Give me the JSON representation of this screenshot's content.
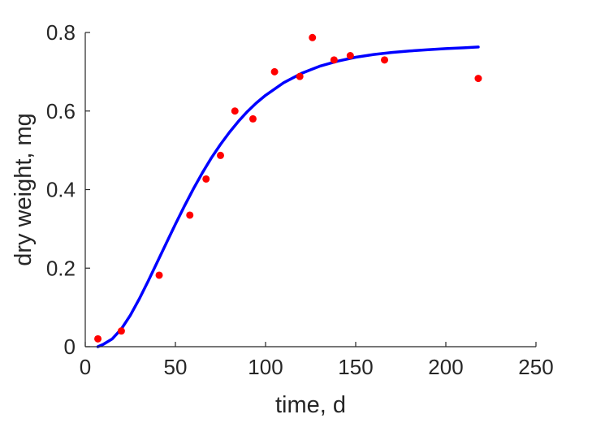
{
  "chart_data": {
    "type": "scatter",
    "title": "",
    "xlabel": "time, d",
    "ylabel": "dry weight, mg",
    "xlim": [
      0,
      250
    ],
    "ylim": [
      0,
      0.8
    ],
    "xticks": [
      0,
      50,
      100,
      150,
      200,
      250
    ],
    "yticks": [
      0,
      0.2,
      0.4,
      0.6,
      0.8
    ],
    "xtick_labels": [
      "0",
      "50",
      "100",
      "150",
      "200",
      "250"
    ],
    "ytick_labels": [
      "0",
      "0.2",
      "0.4",
      "0.6",
      "0.8"
    ],
    "grid": false,
    "series": [
      {
        "kind": "scatter",
        "color": "#ff0000",
        "x": [
          7,
          20,
          41,
          58,
          67,
          75,
          83,
          93,
          105,
          119,
          126,
          138,
          147,
          166,
          218
        ],
        "y": [
          0.02,
          0.04,
          0.182,
          0.335,
          0.427,
          0.487,
          0.6,
          0.58,
          0.7,
          0.688,
          0.787,
          0.73,
          0.741,
          0.73,
          0.683
        ]
      },
      {
        "kind": "line",
        "color": "#0000ff",
        "x": [
          7,
          10,
          15,
          20,
          25,
          30,
          35,
          40,
          45,
          50,
          55,
          60,
          65,
          70,
          75,
          80,
          85,
          90,
          95,
          100,
          110,
          120,
          130,
          140,
          150,
          160,
          170,
          180,
          190,
          200,
          210,
          218
        ],
        "y": [
          0.0,
          0.006,
          0.02,
          0.045,
          0.08,
          0.122,
          0.168,
          0.216,
          0.264,
          0.312,
          0.358,
          0.402,
          0.443,
          0.481,
          0.515,
          0.546,
          0.574,
          0.599,
          0.621,
          0.64,
          0.672,
          0.696,
          0.714,
          0.727,
          0.737,
          0.744,
          0.749,
          0.753,
          0.756,
          0.759,
          0.761,
          0.763
        ]
      }
    ]
  }
}
